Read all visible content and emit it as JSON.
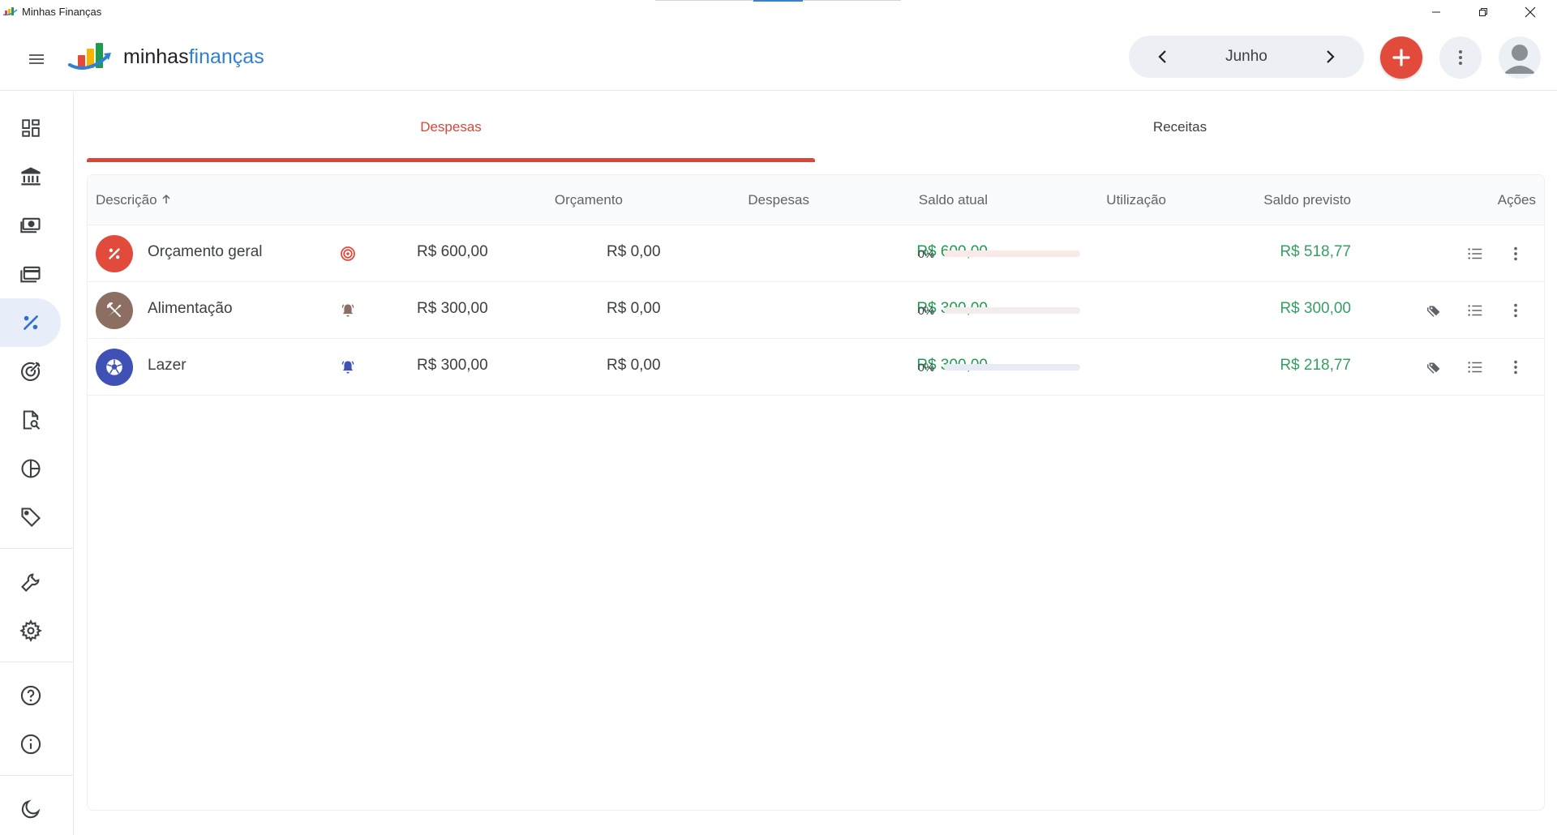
{
  "window": {
    "title": "Minhas Finanças"
  },
  "header": {
    "brand_part1": "minhas",
    "brand_part2": "finanças",
    "month": "Junho",
    "icons": {
      "menu": "menu-icon",
      "prev": "chevron-left-icon",
      "next": "chevron-right-icon",
      "add": "plus-icon",
      "more": "more-vert-icon",
      "avatar": "account-circle-icon"
    }
  },
  "sidebar": {
    "items": [
      {
        "icon": "dashboard-icon"
      },
      {
        "icon": "bank-icon"
      },
      {
        "icon": "money-icon"
      },
      {
        "icon": "credit-card-icon"
      },
      {
        "icon": "percent-icon",
        "active": true
      },
      {
        "icon": "target-icon"
      },
      {
        "icon": "report-search-icon"
      },
      {
        "icon": "pie-chart-icon"
      },
      {
        "icon": "tag-icon"
      },
      {
        "icon": "wrench-icon"
      },
      {
        "icon": "gear-icon"
      },
      {
        "icon": "help-icon"
      },
      {
        "icon": "info-icon"
      },
      {
        "icon": "moon-icon"
      }
    ]
  },
  "tabs": [
    {
      "label": "Despesas",
      "active": true
    },
    {
      "label": "Receitas",
      "active": false
    }
  ],
  "table": {
    "columns": {
      "descricao": "Descrição",
      "orcamento": "Orçamento",
      "despesas": "Despesas",
      "saldo_atual": "Saldo atual",
      "utilizacao": "Utilização",
      "saldo_previsto": "Saldo previsto",
      "acoes": "Ações"
    },
    "rows": [
      {
        "descricao": "Orçamento geral",
        "icon": "percent-icon",
        "icon_color": "#e24a3c",
        "status_icon": "target-icon",
        "status_color": "#e24a3c",
        "orcamento": "R$ 600,00",
        "despesas": "R$ 0,00",
        "saldo_atual": "R$ 600,00",
        "utilizacao": "0%",
        "utilizacao_value": 0,
        "bar_color": "#fbe9e7",
        "saldo_previsto": "R$ 518,77",
        "has_tag": false
      },
      {
        "descricao": "Alimentação",
        "icon": "fork-knife-icon",
        "icon_color": "#8d6e63",
        "status_icon": "bell-icon",
        "status_color": "#8d6e63",
        "orcamento": "R$ 300,00",
        "despesas": "R$ 0,00",
        "saldo_atual": "R$ 300,00",
        "utilizacao": "0%",
        "utilizacao_value": 0,
        "bar_color": "#f2ecea",
        "saldo_previsto": "R$ 300,00",
        "has_tag": true
      },
      {
        "descricao": "Lazer",
        "icon": "soccer-ball-icon",
        "icon_color": "#3f51b5",
        "status_icon": "bell-icon",
        "status_color": "#3f51b5",
        "orcamento": "R$ 300,00",
        "despesas": "R$ 0,00",
        "saldo_atual": "R$ 300,00",
        "utilizacao": "0%",
        "utilizacao_value": 0,
        "bar_color": "#e8eaf6",
        "saldo_previsto": "R$ 218,77",
        "has_tag": true
      }
    ]
  }
}
